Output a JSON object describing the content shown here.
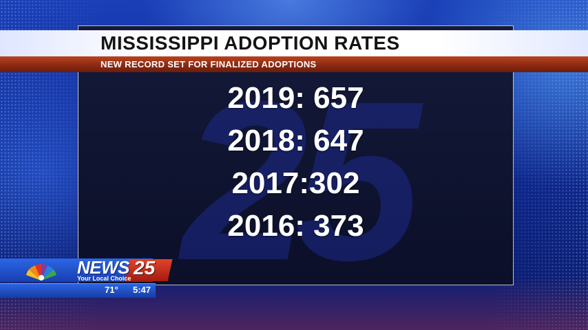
{
  "banner": {
    "title": "MISSISSIPPI ADOPTION RATES",
    "subtitle": "NEW RECORD SET FOR FINALIZED ADOPTIONS"
  },
  "stats": [
    {
      "text": "2019: 657"
    },
    {
      "text": "2018: 647"
    },
    {
      "text": "2017:302"
    },
    {
      "text": "2016: 373"
    }
  ],
  "watermark": "25",
  "bug": {
    "news": "NEWS",
    "number": "25",
    "tagline": "Your Local Choice",
    "logo_icon": "peacock-icon"
  },
  "info": {
    "temperature": "71°",
    "time": "5:47"
  },
  "colors": {
    "background": "#1a3fb8",
    "subtitle_bar": "#8f2a12",
    "bug_blue": "#173fb0",
    "bug_red": "#a41c10"
  }
}
